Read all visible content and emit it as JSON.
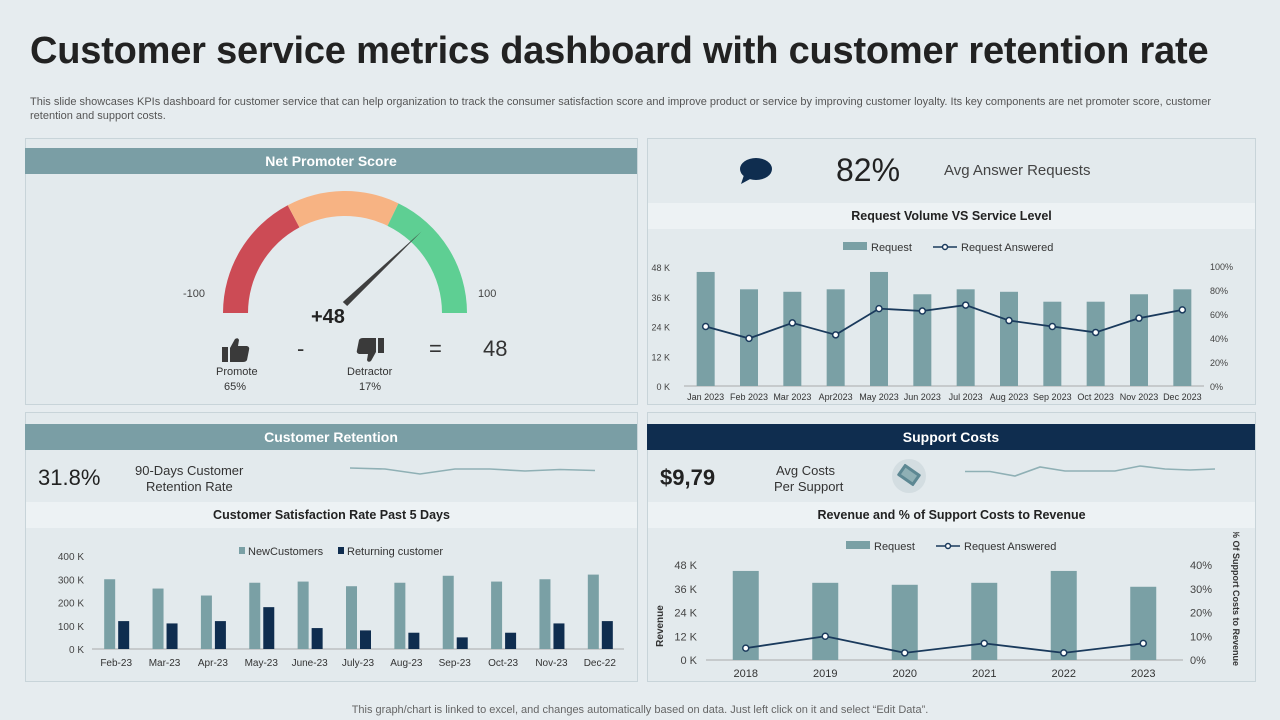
{
  "header": {
    "title": "Customer service metrics dashboard with customer retention rate",
    "subtitle": "This slide showcases KPIs dashboard for customer service that can help organization to track the consumer satisfaction score and improve product or service by improving customer loyalty. Its key components are net promoter score, customer retention and support costs."
  },
  "footer": "This graph/chart is linked to excel,  and changes automatically based on data. Just left click on it and select “Edit Data”.",
  "nps": {
    "title": "Net Promoter Score",
    "min_label": "-100",
    "max_label": "100",
    "value_label": "+48",
    "needle_value": 48,
    "promote_label": "Promote",
    "promote_pct": "65%",
    "detractor_label": "Detractor",
    "detractor_pct": "17%",
    "minus": "-",
    "equals": "=",
    "result": "48",
    "colors": {
      "red": "#cc4b55",
      "orange": "#f7b383",
      "green": "#5ecf93",
      "needle": "#3f3f3f"
    }
  },
  "answer": {
    "value": "82%",
    "label": "Avg Answer Requests"
  },
  "request_chart": {
    "title": "Request Volume VS Service Level",
    "legend_bar": "Request",
    "legend_line": "Request Answered",
    "left_ticks": [
      "48 K",
      "36 K",
      "24 K",
      "12 K",
      "0 K"
    ],
    "right_ticks": [
      "100%",
      "80%",
      "60%",
      "40%",
      "20%",
      "0%"
    ]
  },
  "retention": {
    "title": "Customer Retention",
    "value": "31.8%",
    "label_line1": "90-Days Customer",
    "label_line2": "Retention Rate"
  },
  "satisfaction_chart": {
    "title": "Customer Satisfaction Rate Past 5 Days",
    "legend_new": "NewCustomers",
    "legend_ret": "Returning customer",
    "ticks": [
      "400 K",
      "300 K",
      "200 K",
      "100 K",
      "0 K"
    ]
  },
  "support": {
    "title": "Support Costs",
    "value": "$9,79",
    "label_line1": "Avg Costs",
    "label_line2": "Per Support"
  },
  "revenue_chart": {
    "title": "Revenue and % of Support Costs to Revenue",
    "legend_bar": "Request",
    "legend_line": "Request Answered",
    "left_ticks": [
      "48 K",
      "36 K",
      "24 K",
      "12 K",
      "0 K"
    ],
    "right_ticks": [
      "40%",
      "30%",
      "20%",
      "10%",
      "0%"
    ],
    "ylabel_left": "Revenue",
    "ylabel_right": "% Of Support Costs to Revenue"
  },
  "chart_data": [
    {
      "id": "request",
      "type": "bar",
      "title": "Request Volume VS Service Level",
      "categories": [
        "Jan 2023",
        "Feb 2023",
        "Mar 2023",
        "Apr2023",
        "May 2023",
        "Jun 2023",
        "Jul 2023",
        "Aug 2023",
        "Sep 2023",
        "Oct 2023",
        "Nov 2023",
        "Dec 2023"
      ],
      "series": [
        {
          "name": "Request",
          "kind": "bar",
          "axis": "left",
          "values": [
            46,
            39,
            38,
            39,
            46,
            37,
            39,
            38,
            34,
            34,
            37,
            39
          ]
        },
        {
          "name": "Request Answered",
          "kind": "line",
          "axis": "right",
          "values": [
            50,
            40,
            53,
            43,
            65,
            63,
            68,
            55,
            50,
            45,
            57,
            64
          ]
        }
      ],
      "ylim": [
        0,
        48
      ],
      "y2lim": [
        0,
        100
      ]
    },
    {
      "id": "satisfaction",
      "type": "bar",
      "title": "Customer Satisfaction Rate Past 5 Days",
      "categories": [
        "Feb-23",
        "Mar-23",
        "Apr-23",
        "May-23",
        "June-23",
        "July-23",
        "Aug-23",
        "Sep-23",
        "Oct-23",
        "Nov-23",
        "Dec-22"
      ],
      "series": [
        {
          "name": "NewCustomers",
          "values": [
            300,
            260,
            230,
            285,
            290,
            270,
            285,
            315,
            290,
            300,
            320
          ]
        },
        {
          "name": "Returning customer",
          "values": [
            120,
            110,
            120,
            180,
            90,
            80,
            70,
            50,
            70,
            110,
            120
          ]
        }
      ],
      "ylim": [
        0,
        400
      ]
    },
    {
      "id": "revenue",
      "type": "bar",
      "title": "Revenue and % of Support Costs to Revenue",
      "categories": [
        "2018",
        "2019",
        "2020",
        "2021",
        "2022",
        "2023"
      ],
      "series": [
        {
          "name": "Request",
          "kind": "bar",
          "axis": "left",
          "values": [
            45,
            39,
            38,
            39,
            45,
            37
          ]
        },
        {
          "name": "Request Answered",
          "kind": "line",
          "axis": "right",
          "values": [
            5,
            10,
            3,
            7,
            3,
            7
          ]
        }
      ],
      "ylim": [
        0,
        48
      ],
      "y2lim": [
        0,
        40
      ]
    },
    {
      "id": "retention-spark",
      "type": "line",
      "values": [
        52,
        50,
        40,
        50,
        50,
        46,
        49,
        47
      ]
    },
    {
      "id": "support-spark",
      "type": "line",
      "values": [
        45,
        45,
        36,
        54,
        46,
        46,
        46,
        56,
        50,
        48,
        50
      ]
    }
  ],
  "colors": {
    "bar": "#7aa0a5",
    "navy": "#0f2d4f",
    "line": "#1a3a5c"
  }
}
